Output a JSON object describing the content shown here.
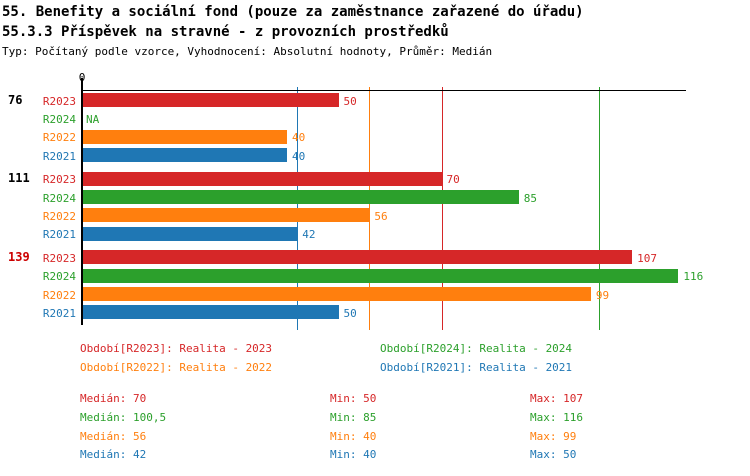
{
  "header": {
    "title_line1": "55. Benefity a sociální fond (pouze za zaměstnance zařazené do úřadu)",
    "title_line2": "55.3.3 Příspěvek na stravné - z provozních prostředků",
    "subtitle": "Typ: Počítaný podle vzorce, Vyhodnocení: Absolutní hodnoty, Průměr: Medián"
  },
  "colors": {
    "R2023": "#d62728",
    "R2024": "#2ca02c",
    "R2022": "#ff7f0e",
    "R2021": "#1f77b4",
    "highlight_group_label": "#cc0000",
    "axis": "#000000"
  },
  "chart_data": {
    "type": "bar",
    "orientation": "horizontal",
    "xlim": [
      0,
      117.5
    ],
    "zero_tick_label": "0",
    "legend_position": "bottom",
    "grid": "median-lines-only",
    "series": [
      {
        "key": "R2023",
        "name": "R2023",
        "color": "#d62728",
        "median": 70
      },
      {
        "key": "R2024",
        "name": "R2024",
        "color": "#2ca02c",
        "median": 100.5
      },
      {
        "key": "R2022",
        "name": "R2022",
        "color": "#ff7f0e",
        "median": 56
      },
      {
        "key": "R2021",
        "name": "R2021",
        "color": "#1f77b4",
        "median": 42
      }
    ],
    "groups": [
      {
        "label": "76",
        "highlight": false,
        "rows": [
          {
            "series": "R2023",
            "value": 50,
            "text": "50"
          },
          {
            "series": "R2024",
            "value": null,
            "text": "NA"
          },
          {
            "series": "R2022",
            "value": 40,
            "text": "40"
          },
          {
            "series": "R2021",
            "value": 40,
            "text": "40"
          }
        ]
      },
      {
        "label": "111",
        "highlight": false,
        "rows": [
          {
            "series": "R2023",
            "value": 70,
            "text": "70"
          },
          {
            "series": "R2024",
            "value": 85,
            "text": "85"
          },
          {
            "series": "R2022",
            "value": 56,
            "text": "56"
          },
          {
            "series": "R2021",
            "value": 42,
            "text": "42"
          }
        ]
      },
      {
        "label": "139",
        "highlight": true,
        "rows": [
          {
            "series": "R2023",
            "value": 107,
            "text": "107"
          },
          {
            "series": "R2024",
            "value": 116,
            "text": "116"
          },
          {
            "series": "R2022",
            "value": 99,
            "text": "99"
          },
          {
            "series": "R2021",
            "value": 50,
            "text": "50"
          }
        ]
      }
    ]
  },
  "legend": {
    "items": [
      {
        "series": "R2023",
        "label": "Období[R2023]: Realita - 2023"
      },
      {
        "series": "R2024",
        "label": "Období[R2024]: Realita - 2024"
      },
      {
        "series": "R2022",
        "label": "Období[R2022]: Realita - 2022"
      },
      {
        "series": "R2021",
        "label": "Období[R2021]: Realita - 2021"
      }
    ]
  },
  "stats": {
    "labels": {
      "median": "Medián:",
      "min": "Min:",
      "max": "Max:"
    },
    "rows": [
      {
        "series": "R2023",
        "median": "70",
        "min": "50",
        "max": "107"
      },
      {
        "series": "R2024",
        "median": "100,5",
        "min": "85",
        "max": "116"
      },
      {
        "series": "R2022",
        "median": "56",
        "min": "40",
        "max": "99"
      },
      {
        "series": "R2021",
        "median": "42",
        "min": "40",
        "max": "50"
      }
    ]
  }
}
